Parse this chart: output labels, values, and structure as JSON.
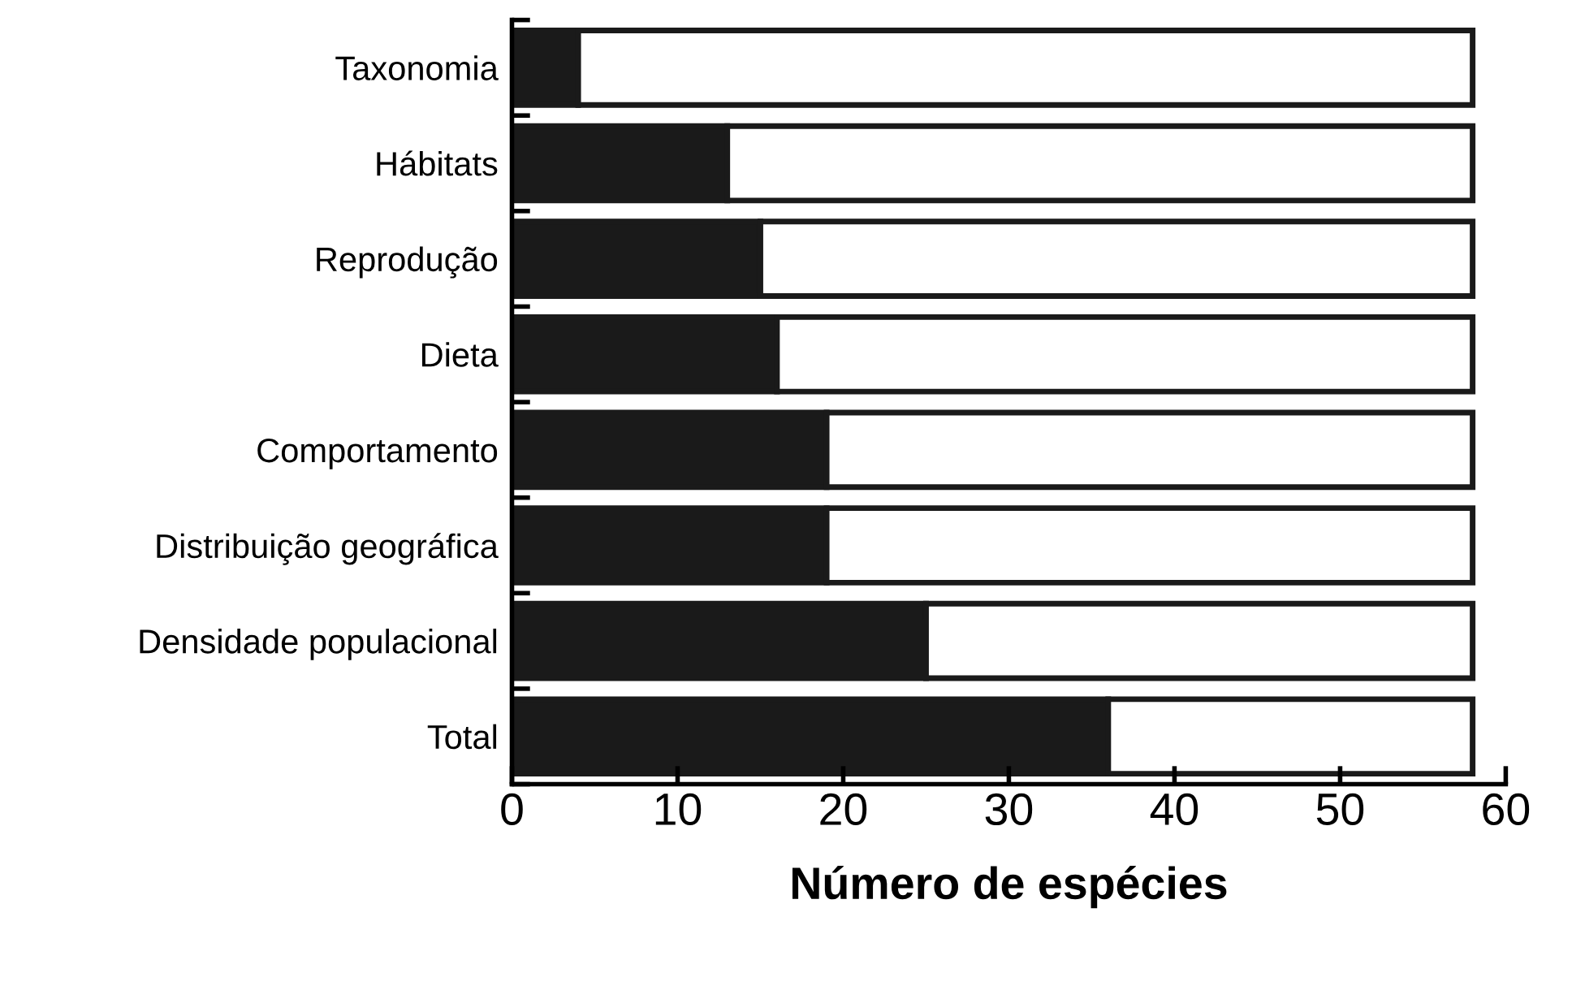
{
  "chart_data": {
    "type": "bar",
    "orientation": "horizontal",
    "stacked": true,
    "categories": [
      "Taxonomia",
      "Hábitats",
      "Reprodução",
      "Dieta",
      "Comportamento",
      "Distribuição geográfica",
      "Densidade populacional",
      "Total"
    ],
    "series": [
      {
        "color": "#1a1a1a",
        "values": [
          4,
          13,
          15,
          16,
          19,
          19,
          25,
          36
        ]
      },
      {
        "color": "#ffffff",
        "values": [
          54,
          45,
          43,
          42,
          39,
          39,
          33,
          22
        ]
      }
    ],
    "xlabel": "Número de espécies",
    "xlim": [
      0,
      60
    ],
    "xticks": [
      0,
      10,
      20,
      30,
      40,
      50,
      60
    ],
    "grid": false,
    "legend": false
  }
}
